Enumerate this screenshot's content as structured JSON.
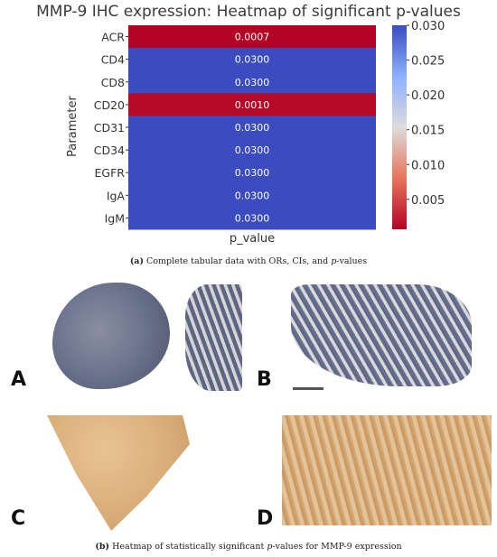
{
  "chart_data": {
    "type": "heatmap",
    "title": "MMP-9 IHC expression: Heatmap of significant p-values",
    "ylabel": "Parameter",
    "xlabel": "",
    "columns": [
      "p_value"
    ],
    "rows": [
      "ACR",
      "CD4",
      "CD8",
      "CD20",
      "CD31",
      "CD34",
      "EGFR",
      "IgA",
      "IgM"
    ],
    "values": [
      0.0007,
      0.03,
      0.03,
      0.001,
      0.03,
      0.03,
      0.03,
      0.03,
      0.03
    ],
    "value_labels": [
      "0.0007",
      "0.0300",
      "0.0300",
      "0.0010",
      "0.0300",
      "0.0300",
      "0.0300",
      "0.0300",
      "0.0300"
    ],
    "colorbar": {
      "min": 0.0007,
      "max": 0.03,
      "ticks": [
        0.005,
        0.01,
        0.015,
        0.02,
        0.025,
        0.03
      ],
      "tick_labels": [
        "0.005",
        "0.010",
        "0.015",
        "0.020",
        "0.025",
        "0.030"
      ],
      "colormap": "coolwarm_r",
      "low_color": "#b40426",
      "mid_color": "#dddcdc",
      "high_color": "#3b4cc0"
    }
  },
  "captions": {
    "a_letter": "(a)",
    "a_text": " Complete tabular data with ORs, CIs, and ",
    "a_italic": "p",
    "a_tail": "-values",
    "b_letter": "(b)",
    "b_text": " Heatmap of statistically significant ",
    "b_italic": "p",
    "b_tail": "-values for MMP-9 expression"
  },
  "panels": {
    "a": "A",
    "b": "B",
    "c": "C",
    "d": "D"
  },
  "colors": {
    "tissue_blue": "#6d7590",
    "tissue_brown": "#d9ad79"
  }
}
